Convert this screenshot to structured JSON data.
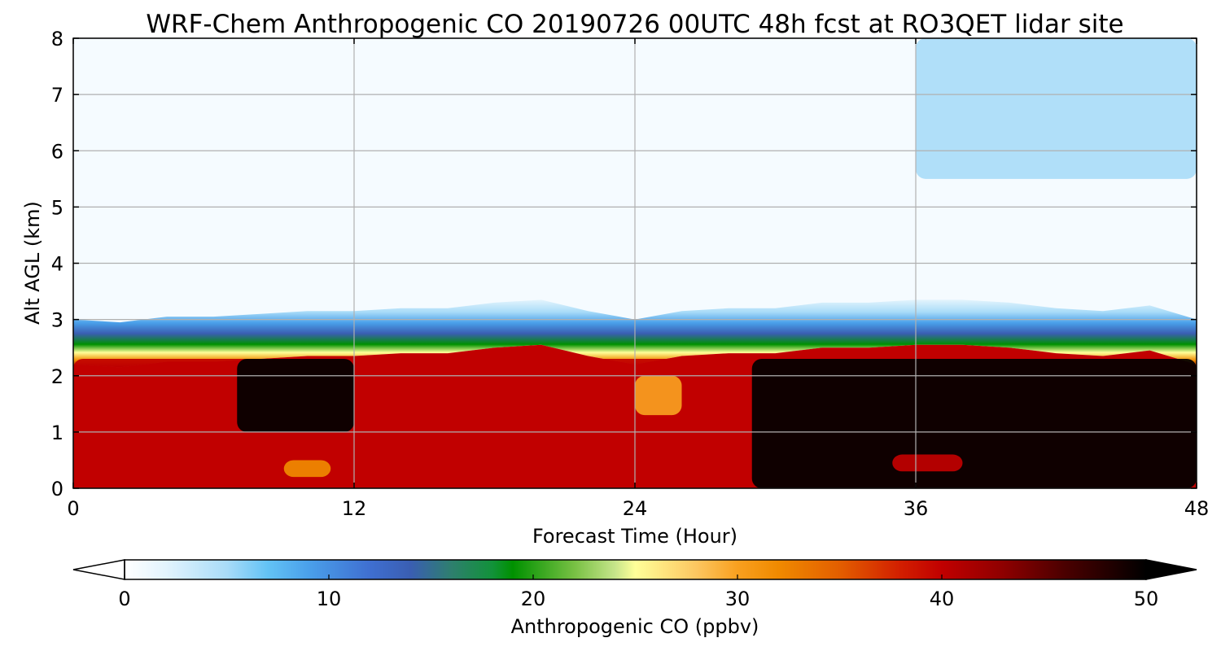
{
  "chart_data": {
    "type": "heatmap",
    "title": "WRF-Chem Anthropogenic CO 20190726 00UTC 48h fcst at RO3QET lidar site",
    "xlabel": "Forecast Time (Hour)",
    "ylabel": "Alt AGL (km)",
    "xlim": [
      0,
      48
    ],
    "ylim": [
      0,
      8
    ],
    "x_ticks": [
      "0",
      "12",
      "24",
      "36",
      "48"
    ],
    "y_ticks": [
      "0",
      "1",
      "2",
      "3",
      "4",
      "5",
      "6",
      "7",
      "8"
    ],
    "grid": true,
    "colorbar": {
      "label": "Anthropogenic CO  (ppbv)",
      "range": [
        0,
        50
      ],
      "ticks": [
        "0",
        "10",
        "20",
        "30",
        "40",
        "50"
      ],
      "extend": "both",
      "colors": [
        {
          "v": 0,
          "c": "#ffffff"
        },
        {
          "v": 2,
          "c": "#e3f4fd"
        },
        {
          "v": 5,
          "c": "#a9dcf8"
        },
        {
          "v": 7,
          "c": "#63c3f5"
        },
        {
          "v": 9,
          "c": "#4aa0ea"
        },
        {
          "v": 12,
          "c": "#3f6fd1"
        },
        {
          "v": 14,
          "c": "#3a5eb2"
        },
        {
          "v": 16,
          "c": "#2e7f6e"
        },
        {
          "v": 18,
          "c": "#12923a"
        },
        {
          "v": 19,
          "c": "#009100"
        },
        {
          "v": 22,
          "c": "#77c043"
        },
        {
          "v": 24,
          "c": "#c6e58a"
        },
        {
          "v": 25,
          "c": "#ffff99"
        },
        {
          "v": 28,
          "c": "#fcc660"
        },
        {
          "v": 30,
          "c": "#f9a01f"
        },
        {
          "v": 32,
          "c": "#f08a00"
        },
        {
          "v": 35,
          "c": "#e35e00"
        },
        {
          "v": 38,
          "c": "#d21e00"
        },
        {
          "v": 40,
          "c": "#c10000"
        },
        {
          "v": 43,
          "c": "#8e0000"
        },
        {
          "v": 46,
          "c": "#4b0000"
        },
        {
          "v": 50,
          "c": "#000000"
        }
      ]
    },
    "times_h": [
      0,
      2,
      4,
      6,
      8,
      10,
      12,
      14,
      16,
      18,
      20,
      22,
      24,
      26,
      28,
      30,
      32,
      34,
      36,
      38,
      40,
      42,
      44,
      46,
      48
    ],
    "boundary_layer_top_km": [
      2.25,
      2.2,
      2.3,
      2.3,
      2.35,
      2.4,
      2.4,
      2.45,
      2.45,
      2.55,
      2.6,
      2.4,
      2.25,
      2.4,
      2.45,
      2.45,
      2.55,
      2.55,
      2.6,
      2.6,
      2.55,
      2.45,
      2.4,
      2.5,
      2.25
    ],
    "regions": [
      {
        "desc": "free troposphere background",
        "t_range": [
          0,
          48
        ],
        "z_range_km": [
          3,
          8
        ],
        "co_ppbv": 1
      },
      {
        "desc": "slightly elevated aloft",
        "t_range": [
          36,
          48
        ],
        "z_range_km": [
          5.5,
          8
        ],
        "co_ppbv": 4
      },
      {
        "desc": "boundary layer mixed (red)",
        "t_range": [
          0,
          30
        ],
        "z_range_km": [
          0,
          2.3
        ],
        "co_ppbv": 40
      },
      {
        "desc": "surface polluted core",
        "t_range": [
          7,
          12
        ],
        "z_range_km": [
          1.0,
          2.3
        ],
        "co_ppbv": 50
      },
      {
        "desc": "surface polluted core",
        "t_range": [
          29,
          48
        ],
        "z_range_km": [
          0,
          2.3
        ],
        "co_ppbv": 50
      },
      {
        "desc": "orange pocket",
        "t_range": [
          9,
          11
        ],
        "z_range_km": [
          0.2,
          0.5
        ],
        "co_ppbv": 32
      },
      {
        "desc": "orange pocket",
        "t_range": [
          24,
          26
        ],
        "z_range_km": [
          1.3,
          2.0
        ],
        "co_ppbv": 30
      },
      {
        "desc": "red pocket",
        "t_range": [
          35,
          38
        ],
        "z_range_km": [
          0.3,
          0.6
        ],
        "co_ppbv": 40
      }
    ]
  }
}
